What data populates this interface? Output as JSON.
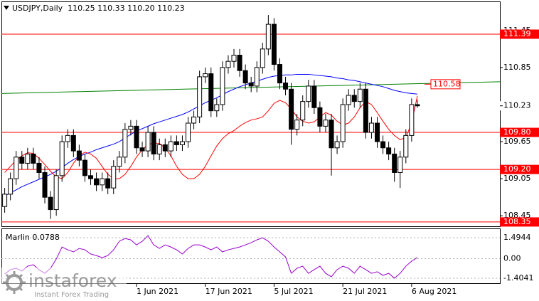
{
  "chart_data": [
    {
      "type": "candlestick",
      "title": "USDJPY,Daily  110.25 110.33 110.20 110.23",
      "categories": [
        null,
        null,
        null,
        null,
        null,
        null,
        null,
        null,
        null,
        null,
        null,
        null,
        null,
        null,
        null,
        null,
        null,
        null,
        null,
        null,
        null,
        null,
        null,
        "1 Jun 2021",
        null,
        null,
        null,
        null,
        null,
        null,
        null,
        null,
        null,
        null,
        null,
        "17 Jun 2021",
        null,
        null,
        null,
        null,
        null,
        null,
        null,
        null,
        null,
        null,
        null,
        "5 Jul 2021",
        null,
        null,
        null,
        null,
        null,
        null,
        null,
        null,
        null,
        null,
        null,
        "21 Jul 2021",
        null,
        null,
        null,
        null,
        null,
        null,
        null,
        null,
        null,
        null,
        null,
        "6 Aug 2021",
        null
      ],
      "open": [
        108.6,
        108.8,
        109.05,
        109.4,
        109.3,
        109.45,
        109.3,
        109.15,
        108.75,
        108.55,
        109.1,
        109.65,
        109.75,
        109.5,
        109.35,
        109.1,
        109.05,
        108.95,
        109.05,
        108.9,
        109.25,
        109.4,
        109.85,
        109.9,
        109.55,
        109.5,
        109.8,
        109.45,
        109.6,
        109.5,
        109.65,
        109.6,
        109.65,
        109.95,
        110.05,
        110.7,
        110.75,
        110.15,
        110.25,
        110.85,
        110.95,
        111.05,
        110.8,
        110.6,
        110.55,
        110.85,
        111.15,
        111.55,
        110.9,
        110.6,
        110.5,
        109.85,
        110.0,
        110.3,
        110.55,
        110.2,
        109.9,
        110.0,
        109.55,
        109.65,
        110.25,
        110.4,
        110.3,
        110.5,
        109.8,
        109.95,
        109.65,
        109.55,
        109.45,
        109.15,
        109.4,
        109.75,
        110.25
      ],
      "high": [
        108.9,
        109.15,
        109.5,
        109.5,
        109.55,
        109.55,
        109.4,
        109.25,
        108.85,
        109.2,
        109.75,
        109.85,
        109.85,
        109.6,
        109.45,
        109.2,
        109.15,
        109.15,
        109.15,
        109.35,
        109.5,
        109.95,
        110.0,
        110.0,
        109.65,
        109.9,
        109.9,
        109.7,
        109.7,
        109.75,
        109.75,
        109.75,
        110.05,
        110.15,
        110.8,
        110.85,
        110.85,
        110.35,
        110.95,
        111.05,
        111.15,
        111.15,
        110.9,
        110.7,
        110.95,
        111.25,
        111.7,
        111.65,
        111.0,
        110.7,
        110.6,
        110.1,
        110.4,
        110.65,
        110.65,
        110.3,
        110.1,
        110.1,
        109.75,
        110.35,
        110.5,
        110.5,
        110.6,
        110.6,
        110.05,
        110.05,
        109.75,
        109.65,
        109.55,
        109.5,
        109.85,
        110.35,
        110.33
      ],
      "low": [
        108.5,
        108.7,
        108.95,
        109.2,
        109.2,
        109.2,
        109.05,
        108.65,
        108.4,
        108.45,
        109.0,
        109.55,
        109.4,
        109.25,
        109.0,
        108.95,
        108.85,
        108.85,
        108.8,
        108.8,
        109.15,
        109.3,
        109.75,
        109.45,
        109.4,
        109.4,
        109.35,
        109.35,
        109.4,
        109.4,
        109.5,
        109.5,
        109.55,
        109.85,
        109.95,
        110.6,
        110.05,
        110.05,
        110.15,
        110.75,
        110.85,
        110.7,
        110.5,
        110.45,
        110.45,
        110.75,
        111.05,
        110.8,
        110.5,
        110.4,
        109.6,
        109.75,
        109.9,
        110.2,
        110.1,
        109.8,
        109.8,
        109.1,
        109.45,
        109.55,
        110.15,
        110.2,
        110.2,
        109.7,
        109.7,
        109.55,
        109.45,
        109.35,
        109.0,
        108.9,
        109.3,
        109.65,
        110.2
      ],
      "close": [
        108.8,
        109.05,
        109.4,
        109.3,
        109.45,
        109.3,
        109.15,
        108.75,
        108.55,
        109.1,
        109.65,
        109.75,
        109.5,
        109.35,
        109.1,
        109.05,
        108.95,
        109.05,
        108.9,
        109.25,
        109.4,
        109.85,
        109.9,
        109.55,
        109.5,
        109.8,
        109.45,
        109.6,
        109.5,
        109.65,
        109.6,
        109.65,
        109.95,
        110.05,
        110.7,
        110.75,
        110.15,
        110.25,
        110.85,
        110.95,
        111.05,
        110.8,
        110.6,
        110.55,
        110.85,
        111.15,
        111.55,
        110.9,
        110.6,
        110.5,
        109.85,
        110.0,
        110.3,
        110.55,
        110.2,
        109.9,
        110.0,
        109.55,
        109.65,
        110.25,
        110.4,
        110.3,
        110.5,
        109.8,
        109.95,
        109.65,
        109.55,
        109.45,
        109.15,
        109.4,
        109.75,
        110.25,
        110.23
      ],
      "up_color": "#ffffff",
      "down_color": "#000000",
      "series": [
        {
          "color": "#0000ff",
          "values": [
            108.77,
            108.82,
            108.87,
            108.92,
            108.96,
            109.0,
            109.04,
            109.08,
            109.12,
            109.17,
            109.23,
            109.3,
            109.36,
            109.41,
            109.45,
            109.48,
            109.52,
            109.55,
            109.58,
            109.61,
            109.65,
            109.71,
            109.77,
            109.82,
            109.86,
            109.9,
            109.94,
            109.97,
            110.0,
            110.03,
            110.06,
            110.09,
            110.13,
            110.18,
            110.23,
            110.28,
            110.32,
            110.36,
            110.41,
            110.46,
            110.5,
            110.54,
            110.57,
            110.6,
            110.63,
            110.66,
            110.69,
            110.71,
            110.72,
            110.73,
            110.73,
            110.74,
            110.74,
            110.74,
            110.73,
            110.72,
            110.71,
            110.7,
            110.68,
            110.67,
            110.65,
            110.64,
            110.62,
            110.6,
            110.58,
            110.56,
            110.54,
            110.51,
            110.48,
            110.46,
            110.44,
            110.43,
            110.42
          ]
        },
        {
          "color": "#ff0000",
          "values": [
            109.15,
            109.25,
            109.35,
            109.42,
            109.47,
            109.46,
            109.38,
            109.28,
            109.17,
            109.08,
            109.05,
            109.15,
            109.3,
            109.42,
            109.48,
            109.45,
            109.38,
            109.25,
            109.12,
            109.05,
            109.05,
            109.12,
            109.25,
            109.4,
            109.52,
            109.6,
            109.63,
            109.62,
            109.55,
            109.42,
            109.25,
            109.12,
            109.05,
            109.05,
            109.12,
            109.25,
            109.42,
            109.58,
            109.7,
            109.78,
            109.83,
            109.9,
            109.96,
            110.0,
            110.02,
            110.05,
            110.15,
            110.27,
            110.32,
            110.28,
            110.18,
            110.05,
            109.98,
            109.95,
            109.97,
            110.05,
            110.12,
            110.08,
            109.98,
            109.92,
            109.95,
            110.05,
            110.2,
            110.3,
            110.25,
            110.12,
            109.98,
            109.85,
            109.75,
            109.68,
            109.72,
            109.95,
            110.39
          ]
        }
      ],
      "trend_line": {
        "color": "#008000",
        "values": [
          110.43,
          110.62
        ]
      },
      "marker": 110.58,
      "levels": [
        111.39,
        {
          "value": 109.8,
          "label": "109.80"
        },
        {
          "value": 109.2,
          "label": "109.20"
        },
        108.35
      ],
      "level_color": "#ff0000",
      "ylim": [
        108.28,
        111.92
      ],
      "yticks": [
        108.45,
        109.05,
        109.65,
        110.85,
        111.45
      ]
    },
    {
      "type": "line",
      "title": "Marlin 0.0788",
      "color": "#9900cc",
      "values": [
        -1.1,
        -0.79,
        -0.69,
        -0.89,
        -0.54,
        -0.44,
        -0.79,
        -1.05,
        -0.69,
        -0.03,
        0.83,
        0.63,
        0.48,
        0.73,
        0.63,
        0.33,
        0.22,
        0.07,
        0.22,
        0.63,
        1.24,
        1.44,
        1.34,
        0.98,
        1.24,
        1.65,
        0.98,
        0.73,
        0.98,
        0.83,
        0.63,
        0.33,
        0.73,
        0.98,
        0.98,
        0.83,
        0.63,
        0.83,
        0.48,
        0.63,
        0.73,
        0.83,
        0.98,
        1.14,
        1.34,
        1.49,
        1.24,
        0.83,
        0.48,
        0.12,
        -1.05,
        -0.69,
        -0.54,
        -1.05,
        -0.79,
        -0.54,
        -1.05,
        -1.3,
        -0.79,
        -0.54,
        -0.69,
        -1.05,
        -0.54,
        -0.79,
        -1.05,
        -0.94,
        -1.2,
        -1.05,
        -1.4,
        -1.05,
        -0.54,
        -0.18,
        0.0788
      ],
      "ylim": [
        -1.81,
        2.16
      ],
      "yticks": [
        1.4944,
        {
          "value": 0,
          "label": "0.00"
        },
        -1.4041
      ],
      "grid": true
    }
  ],
  "branding": {
    "name": "instaforex",
    "tagline": "Instant Forex Trading"
  }
}
